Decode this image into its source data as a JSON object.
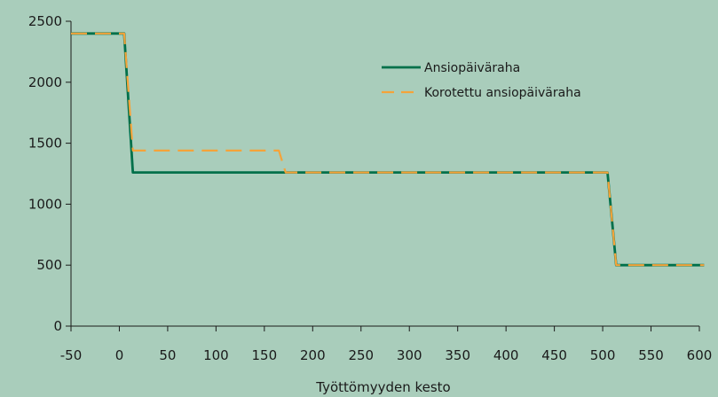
{
  "chart_data": {
    "type": "line",
    "title": "",
    "xlabel": "Työttömyyden kesto",
    "ylabel": "",
    "xlim": [
      -50,
      600
    ],
    "ylim": [
      0,
      2500
    ],
    "x_ticks": [
      -50,
      0,
      50,
      100,
      150,
      200,
      250,
      300,
      350,
      400,
      450,
      500,
      550,
      600
    ],
    "y_ticks": [
      0,
      500,
      1000,
      1500,
      2000,
      2500
    ],
    "grid": false,
    "legend_position": "top-right",
    "series": [
      {
        "name": "Ansiopäiväraha",
        "color": "#00704a",
        "style": "solid",
        "x": [
          -50,
          5,
          14,
          505,
          514,
          605
        ],
        "y": [
          2400,
          2400,
          1260,
          1260,
          500,
          500
        ]
      },
      {
        "name": "Korotettu ansiopäiväraha",
        "color": "#f5a33a",
        "style": "dashed",
        "x": [
          -50,
          5,
          14,
          165,
          172,
          505,
          514,
          605
        ],
        "y": [
          2400,
          2400,
          1440,
          1440,
          1260,
          1260,
          500,
          500
        ]
      }
    ]
  }
}
